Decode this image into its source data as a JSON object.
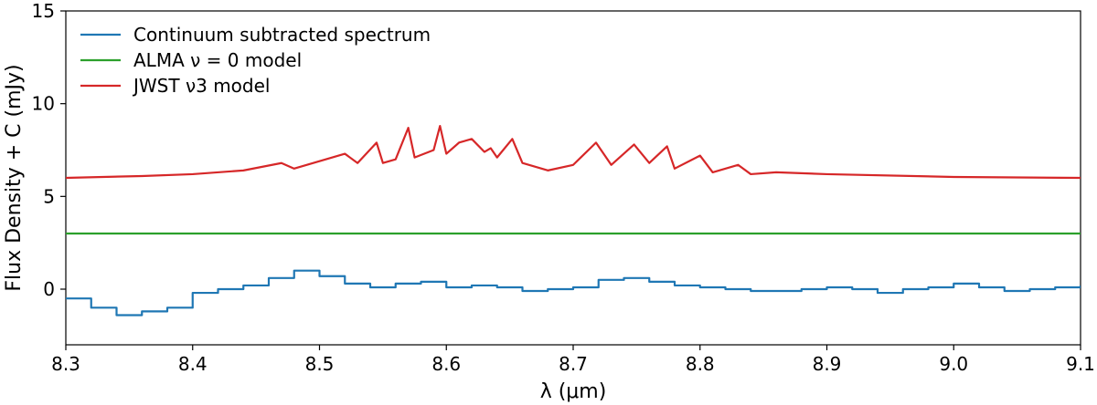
{
  "chart_data": {
    "type": "line",
    "title": "",
    "xlabel": "λ (μm)",
    "ylabel": "Flux Density + C (mJy)",
    "xlim": [
      8.3,
      9.1
    ],
    "ylim": [
      -3,
      15
    ],
    "xticks": [
      8.3,
      8.4,
      8.5,
      8.6,
      8.7,
      8.8,
      8.9,
      9.0,
      9.1
    ],
    "xtick_labels": [
      "8.3",
      "8.4",
      "8.5",
      "8.6",
      "8.7",
      "8.8",
      "8.9",
      "9.0",
      "9.1"
    ],
    "yticks": [
      0,
      5,
      10,
      15
    ],
    "ytick_labels": [
      "0",
      "5",
      "10",
      "15"
    ],
    "grid": false,
    "legend_position": "top-left",
    "series": [
      {
        "name": "Continuum subtracted spectrum",
        "color": "#1f77b4",
        "step": true,
        "x": [
          8.3,
          8.32,
          8.34,
          8.36,
          8.38,
          8.4,
          8.42,
          8.44,
          8.46,
          8.48,
          8.5,
          8.52,
          8.54,
          8.56,
          8.58,
          8.6,
          8.62,
          8.64,
          8.66,
          8.68,
          8.7,
          8.72,
          8.74,
          8.76,
          8.78,
          8.8,
          8.82,
          8.84,
          8.86,
          8.88,
          8.9,
          8.92,
          8.94,
          8.96,
          8.98,
          9.0,
          9.02,
          9.04,
          9.06,
          9.08,
          9.1
        ],
        "values": [
          -0.5,
          -1.0,
          -1.4,
          -1.2,
          -1.0,
          -0.2,
          0.0,
          0.2,
          0.6,
          1.0,
          0.7,
          0.3,
          0.1,
          0.3,
          0.4,
          0.1,
          0.2,
          0.1,
          -0.1,
          0.0,
          0.1,
          0.5,
          0.6,
          0.4,
          0.2,
          0.1,
          0.0,
          -0.1,
          -0.1,
          0.0,
          0.1,
          0.0,
          -0.2,
          0.0,
          0.1,
          0.3,
          0.1,
          -0.1,
          0.0,
          0.1,
          0.2
        ]
      },
      {
        "name": "ALMA ν = 0 model",
        "color": "#2ca02c",
        "x": [
          8.3,
          9.1
        ],
        "values": [
          3.0,
          3.0
        ]
      },
      {
        "name": "JWST ν3 model",
        "color": "#d62728",
        "x": [
          8.3,
          8.36,
          8.4,
          8.44,
          8.47,
          8.48,
          8.5,
          8.52,
          8.53,
          8.545,
          8.55,
          8.56,
          8.57,
          8.575,
          8.59,
          8.595,
          8.6,
          8.61,
          8.62,
          8.63,
          8.635,
          8.64,
          8.652,
          8.66,
          8.68,
          8.7,
          8.718,
          8.73,
          8.748,
          8.76,
          8.774,
          8.78,
          8.8,
          8.81,
          8.83,
          8.84,
          8.86,
          8.9,
          9.0,
          9.1
        ],
        "values": [
          6.0,
          6.1,
          6.2,
          6.4,
          6.8,
          6.5,
          6.9,
          7.3,
          6.8,
          7.9,
          6.8,
          7.0,
          8.7,
          7.1,
          7.5,
          8.8,
          7.3,
          7.9,
          8.1,
          7.4,
          7.6,
          7.1,
          8.1,
          6.8,
          6.4,
          6.7,
          7.9,
          6.7,
          7.8,
          6.8,
          7.7,
          6.5,
          7.2,
          6.3,
          6.7,
          6.2,
          6.3,
          6.2,
          6.05,
          6.0
        ]
      }
    ]
  }
}
